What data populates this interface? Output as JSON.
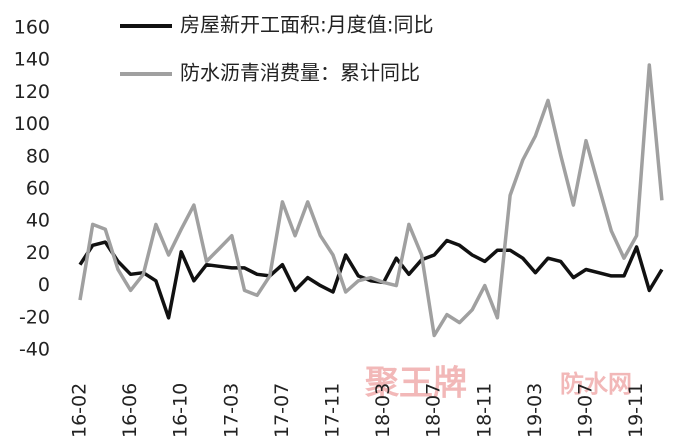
{
  "chart_data": {
    "type": "line",
    "categories": [
      "16-02",
      null,
      null,
      null,
      "16-06",
      null,
      null,
      null,
      "16-10",
      null,
      null,
      null,
      "17-03",
      null,
      null,
      null,
      "17-07",
      null,
      null,
      null,
      "17-11",
      null,
      null,
      null,
      "18-03",
      null,
      null,
      null,
      "18-07",
      null,
      null,
      null,
      "18-11",
      null,
      null,
      null,
      "19-03",
      null,
      null,
      null,
      "19-07",
      null,
      null,
      null,
      "19-11",
      null,
      null
    ],
    "series": [
      {
        "name": "房屋新开工面积:月度值:同比",
        "color": "#111111",
        "values": [
          13,
          25,
          27,
          15,
          7,
          8,
          3,
          -20,
          21,
          3,
          13,
          12,
          11,
          11,
          7,
          6,
          13,
          -3,
          5,
          0,
          -4,
          19,
          6,
          3,
          2,
          17,
          7,
          16,
          19,
          28,
          25,
          19,
          15,
          22,
          22,
          17,
          8,
          17,
          15,
          5,
          10,
          8,
          6,
          6,
          24,
          -3,
          10
        ]
      },
      {
        "name": "防水沥青消费量：累计同比",
        "color": "#a0a0a0",
        "values": [
          -9,
          38,
          35,
          10,
          -3,
          7,
          38,
          19,
          35,
          50,
          15,
          23,
          31,
          -3,
          -6,
          6,
          52,
          31,
          52,
          31,
          19,
          -4,
          3,
          5,
          2,
          0,
          38,
          19,
          -31,
          -18,
          -23,
          -15,
          0,
          -20,
          56,
          78,
          93,
          115,
          81,
          50,
          90,
          62,
          34,
          17,
          31,
          137,
          53
        ]
      }
    ],
    "ylim": [
      -40,
      160
    ],
    "yticks": [
      -40,
      -20,
      0,
      20,
      40,
      60,
      80,
      100,
      120,
      140,
      160
    ],
    "watermark": [
      "聚王牌",
      "防水网"
    ]
  }
}
